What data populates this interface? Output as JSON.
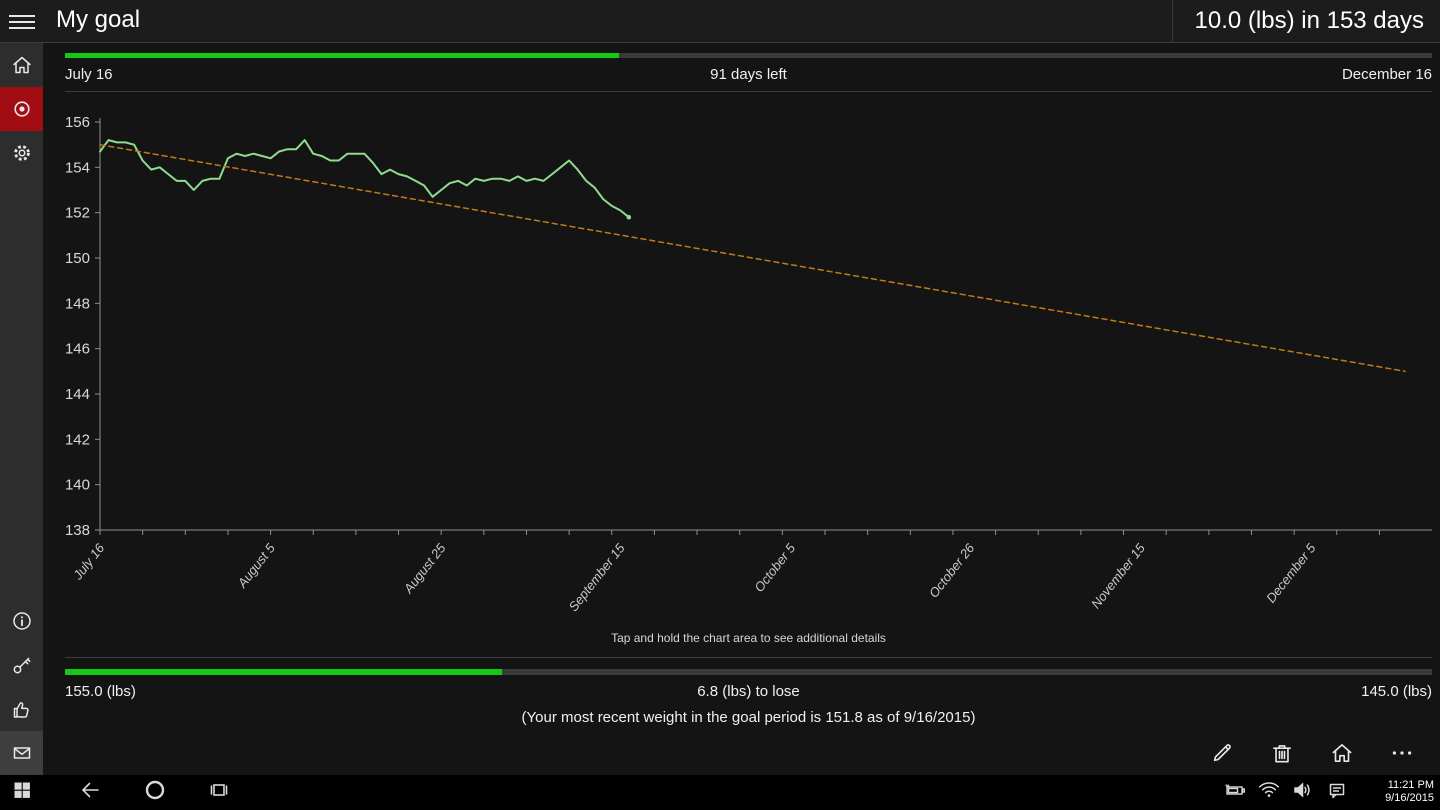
{
  "titlebar": {
    "title": "My goal",
    "goal_summary": "10.0 (lbs) in 153 days"
  },
  "timeline": {
    "start_label": "July 16",
    "center_label": "91 days left",
    "end_label": "December 16",
    "progress_percent": 40.5
  },
  "chart_hint": "Tap and hold the chart area to see additional details",
  "weight_progress": {
    "start_label": "155.0 (lbs)",
    "center_label": "6.8 (lbs) to lose",
    "end_label": "145.0 (lbs)",
    "progress_percent": 32,
    "note": "(Your most recent weight in the goal period is 151.8 as of 9/16/2015)"
  },
  "chart_data": {
    "type": "line",
    "title": "Weight over goal period",
    "xlabel": "",
    "ylabel": "",
    "ylim": [
      138,
      156
    ],
    "y_tick_step": 2,
    "x_day_range": [
      0,
      153
    ],
    "x_minor_tick_days": 5,
    "grid": false,
    "legend": "none",
    "x_tick_labels": [
      {
        "day": 0,
        "label": "July 16"
      },
      {
        "day": 20,
        "label": "August 5"
      },
      {
        "day": 40,
        "label": "August 25"
      },
      {
        "day": 61,
        "label": "September 15"
      },
      {
        "day": 81,
        "label": "October 5"
      },
      {
        "day": 102,
        "label": "October 26"
      },
      {
        "day": 122,
        "label": "November 15"
      },
      {
        "day": 142,
        "label": "December 5"
      }
    ],
    "series": [
      {
        "name": "actual-weight",
        "color": "#8fdc8f",
        "style": "solid",
        "points": [
          [
            0,
            154.7
          ],
          [
            1,
            155.2
          ],
          [
            2,
            155.1
          ],
          [
            3,
            155.1
          ],
          [
            4,
            155.0
          ],
          [
            5,
            154.3
          ],
          [
            6,
            153.9
          ],
          [
            7,
            154.0
          ],
          [
            8,
            153.7
          ],
          [
            9,
            153.4
          ],
          [
            10,
            153.4
          ],
          [
            11,
            153.0
          ],
          [
            12,
            153.4
          ],
          [
            13,
            153.5
          ],
          [
            14,
            153.5
          ],
          [
            15,
            154.4
          ],
          [
            16,
            154.6
          ],
          [
            17,
            154.5
          ],
          [
            18,
            154.6
          ],
          [
            19,
            154.5
          ],
          [
            20,
            154.4
          ],
          [
            21,
            154.7
          ],
          [
            22,
            154.8
          ],
          [
            23,
            154.8
          ],
          [
            24,
            155.2
          ],
          [
            25,
            154.6
          ],
          [
            26,
            154.5
          ],
          [
            27,
            154.3
          ],
          [
            28,
            154.3
          ],
          [
            29,
            154.6
          ],
          [
            30,
            154.6
          ],
          [
            31,
            154.6
          ],
          [
            32,
            154.2
          ],
          [
            33,
            153.7
          ],
          [
            34,
            153.9
          ],
          [
            35,
            153.7
          ],
          [
            36,
            153.6
          ],
          [
            37,
            153.4
          ],
          [
            38,
            153.2
          ],
          [
            39,
            152.7
          ],
          [
            40,
            153.0
          ],
          [
            41,
            153.3
          ],
          [
            42,
            153.4
          ],
          [
            43,
            153.2
          ],
          [
            44,
            153.5
          ],
          [
            45,
            153.4
          ],
          [
            46,
            153.5
          ],
          [
            47,
            153.5
          ],
          [
            48,
            153.4
          ],
          [
            49,
            153.6
          ],
          [
            50,
            153.4
          ],
          [
            51,
            153.5
          ],
          [
            52,
            153.4
          ],
          [
            53,
            153.7
          ],
          [
            54,
            154.0
          ],
          [
            55,
            154.3
          ],
          [
            56,
            153.9
          ],
          [
            57,
            153.4
          ],
          [
            58,
            153.1
          ],
          [
            59,
            152.6
          ],
          [
            60,
            152.3
          ],
          [
            61,
            152.1
          ],
          [
            62,
            151.8
          ]
        ]
      },
      {
        "name": "goal-trend",
        "color": "#bf7b17",
        "style": "dashed",
        "points": [
          [
            0,
            155.0
          ],
          [
            153,
            145.0
          ]
        ]
      }
    ]
  },
  "sidebar": {
    "items": [
      {
        "icon": "home-icon",
        "selected": false
      },
      {
        "icon": "goal-target-icon",
        "selected": true
      },
      {
        "icon": "settings-gear-icon",
        "selected": false
      }
    ],
    "bottom_items": [
      {
        "icon": "info-icon"
      },
      {
        "icon": "key-icon"
      },
      {
        "icon": "thumbs-up-icon"
      },
      {
        "icon": "mail-envelope-icon",
        "highlighted": true
      }
    ]
  },
  "command_bar": {
    "buttons": [
      {
        "icon": "edit-pencil-icon"
      },
      {
        "icon": "delete-trash-icon"
      },
      {
        "icon": "home-icon"
      },
      {
        "icon": "more-ellipsis-icon"
      }
    ]
  },
  "taskbar": {
    "time": "11:21 PM",
    "date": "9/16/2015",
    "buttons": [
      {
        "icon": "windows-start-icon"
      },
      {
        "icon": "back-arrow-icon"
      },
      {
        "icon": "cortana-circle-icon"
      },
      {
        "icon": "task-view-icon"
      }
    ],
    "tray": [
      {
        "icon": "battery-charging-icon"
      },
      {
        "icon": "wifi-icon"
      },
      {
        "icon": "volume-icon"
      },
      {
        "icon": "action-center-icon"
      }
    ]
  },
  "colors": {
    "accent_red": "#a10d13",
    "progress_green": "#16c916",
    "weight_line_green": "#8fdc8f",
    "goal_line_orange": "#bf7b17",
    "axis_gray": "#8f8f8f",
    "tick_label_gray": "#c9c9c9"
  }
}
